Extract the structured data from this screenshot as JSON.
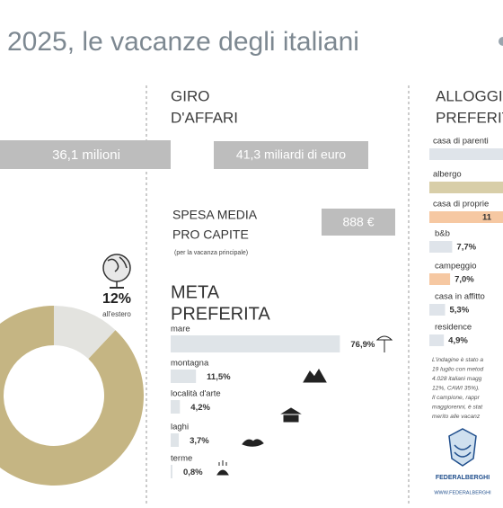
{
  "header": {
    "title": "2025, le vacanze degli italiani"
  },
  "left": {
    "value_box": "36,1 milioni",
    "share": {
      "value": 12,
      "label": "12%",
      "caption": "all'estero"
    }
  },
  "middle": {
    "title": [
      "GIRO",
      "D'AFFARI"
    ],
    "turnover": "41,3 miliardi di euro",
    "spend_title": [
      "SPESA MEDIA",
      "PRO CAPITE"
    ],
    "spend_note": "(per la vacanza principale)",
    "spend": "888 €",
    "dest_title": [
      "META",
      "PREFERITA"
    ],
    "destinations": [
      {
        "name": "mare",
        "value": 76.9,
        "label": "76,9%"
      },
      {
        "name": "montagna",
        "value": 11.5,
        "label": "11,5%"
      },
      {
        "name": "località d'arte",
        "value": 4.2,
        "label": "4,2%"
      },
      {
        "name": "laghi",
        "value": 3.7,
        "label": "3,7%"
      },
      {
        "name": "terme",
        "value": 0.8,
        "label": "0,8%"
      }
    ]
  },
  "right": {
    "title": [
      "ALLOGGI",
      "PREFERIT"
    ],
    "lodgings_cut": [
      {
        "name": "casa di parenti",
        "color": "#dfe4ea"
      },
      {
        "name": "albergo",
        "color": "#d8cea8"
      },
      {
        "name": "casa di proprie",
        "color": "#f6c8a2",
        "label": "11"
      }
    ],
    "lodgings": [
      {
        "name": "b&b",
        "value": 7.7,
        "label": "7,7%",
        "color": "#dfe4ea"
      },
      {
        "name": "campeggio",
        "value": 7.0,
        "label": "7,0%",
        "color": "#f6c8a2"
      },
      {
        "name": "casa in affitto",
        "value": 5.3,
        "label": "5,3%",
        "color": "#dfe4ea"
      },
      {
        "name": "residence",
        "value": 4.9,
        "label": "4,9%",
        "color": "#dfe4ea"
      }
    ],
    "note": [
      "L'indagine è stato a",
      "19 luglio con metod",
      "4.028 italiani magg",
      "12%, CAWI 35%).",
      "Il campione, rappr",
      "maggiorenni, è stat",
      "merito alle vacanz"
    ],
    "logo": {
      "name": "FEDERALBERGHI",
      "url": "WWW.FEDERALBERGHI"
    }
  }
}
